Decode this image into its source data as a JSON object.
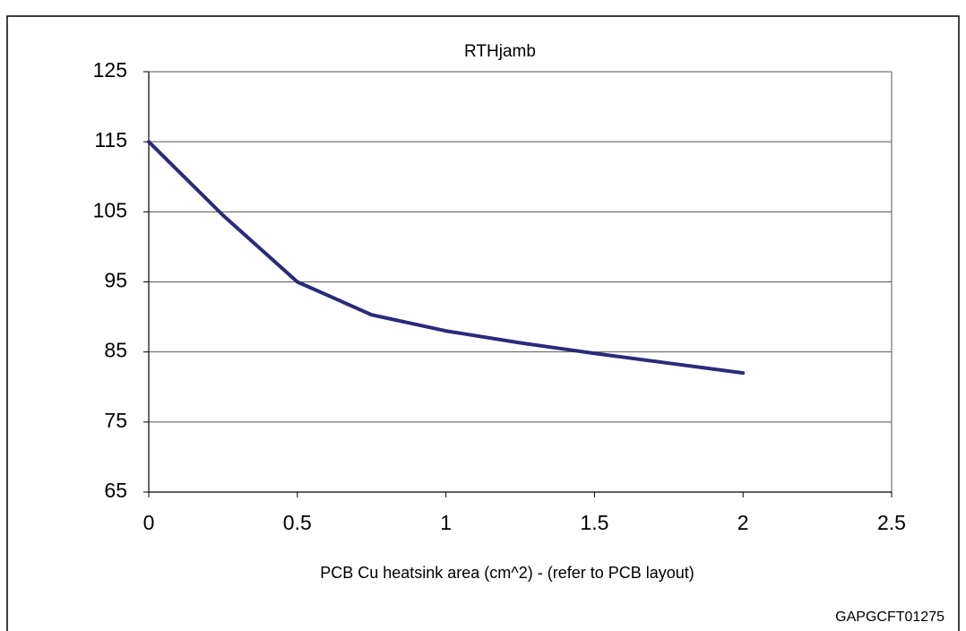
{
  "chart_data": {
    "type": "line",
    "title": "RTHjamb",
    "x_label": "PCB Cu heatsink area (cm^2) -  (refer to PCB layout)",
    "figure_code": "GAPGCFT01275",
    "x": [
      0,
      0.25,
      0.5,
      0.75,
      1,
      1.25,
      1.5,
      1.75,
      2
    ],
    "series": [
      {
        "color": "#2b2a7a",
        "values": [
          115,
          104.5,
          95,
          90.3,
          88,
          86.3,
          84.8,
          83.4,
          82
        ]
      }
    ],
    "xlim": [
      0,
      2.5
    ],
    "xticks": [
      0,
      0.5,
      1,
      1.5,
      2,
      2.5
    ],
    "ylim": [
      65,
      125
    ],
    "yticks": [
      65,
      75,
      85,
      95,
      105,
      115,
      125
    ],
    "grid": true
  }
}
